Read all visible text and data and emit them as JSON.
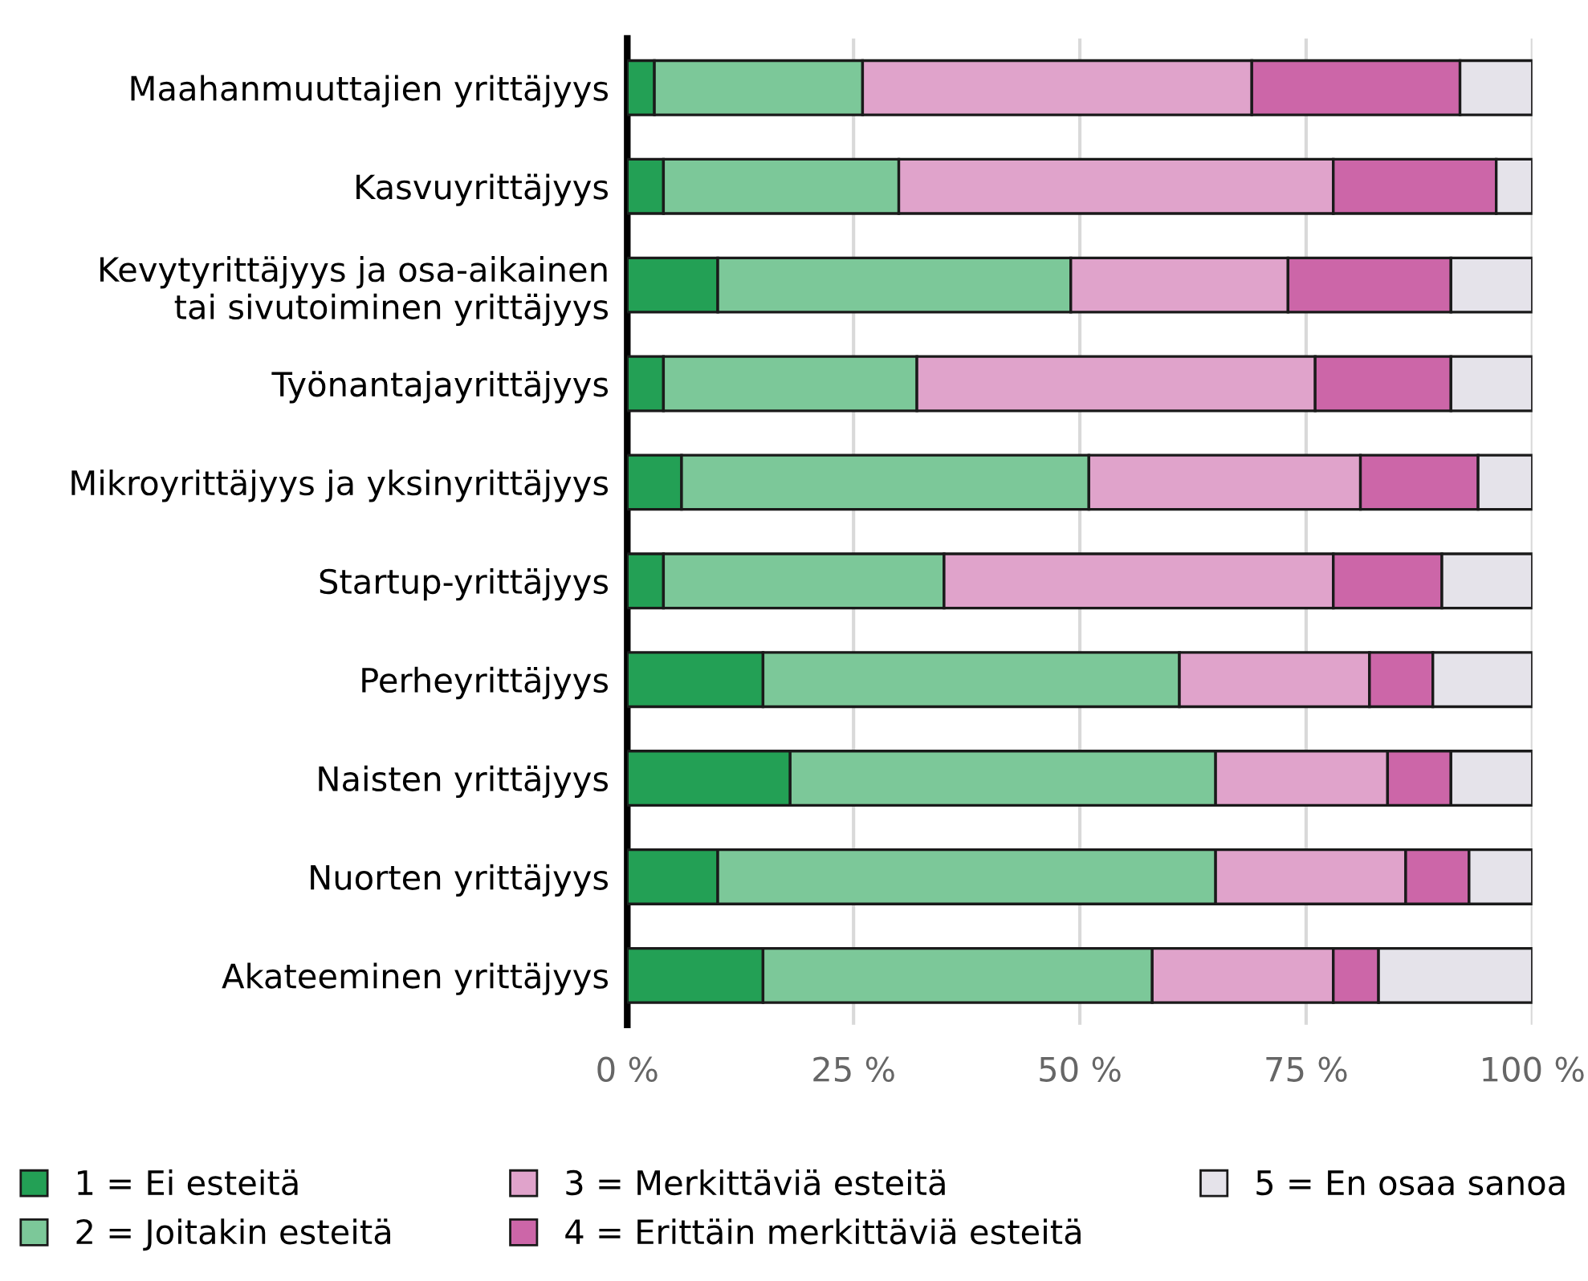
{
  "chart_data": {
    "type": "bar",
    "orientation": "horizontal",
    "stacked": true,
    "categories": [
      "Maahanmuuttajien yrittäjyys",
      "Kasvuyrittäjyys",
      "Kevytyrittäjyys ja osa-aikainen\ntai sivutoiminen yrittäjyys",
      "Työnantajayrittäjyys",
      "Mikroyrittäjyys ja yksinyrittäjyys",
      "Startup-yrittäjyys",
      "Perheyrittäjyys",
      "Naisten yrittäjyys",
      "Nuorten yrittäjyys",
      "Akateeminen yrittäjyys"
    ],
    "series": [
      {
        "name": "1 = Ei esteitä",
        "color": "#23a055",
        "values": [
          3,
          4,
          10,
          4,
          6,
          4,
          15,
          18,
          10,
          15
        ]
      },
      {
        "name": "2 = Joitakin esteitä",
        "color": "#7cc899",
        "values": [
          23,
          26,
          39,
          28,
          45,
          31,
          46,
          47,
          55,
          43
        ]
      },
      {
        "name": "3 = Merkittäviä esteitä",
        "color": "#e0a3cb",
        "values": [
          43,
          48,
          24,
          44,
          30,
          43,
          21,
          19,
          21,
          20
        ]
      },
      {
        "name": "4 = Erittäin merkittäviä esteitä",
        "color": "#cc66a8",
        "values": [
          23,
          18,
          18,
          15,
          13,
          12,
          7,
          7,
          7,
          5
        ]
      },
      {
        "name": "5 = En osaa sanoa",
        "color": "#e5e3ea",
        "values": [
          8,
          4,
          9,
          9,
          6,
          10,
          11,
          9,
          7,
          17
        ]
      }
    ],
    "xlim": [
      0,
      100
    ],
    "xticks": [
      {
        "value": 0,
        "label": "0 %"
      },
      {
        "value": 25,
        "label": "25 %"
      },
      {
        "value": 50,
        "label": "50 %"
      },
      {
        "value": 75,
        "label": "75 %"
      },
      {
        "value": 100,
        "label": "100 %"
      }
    ],
    "grid": "x",
    "legend": "bottom"
  }
}
